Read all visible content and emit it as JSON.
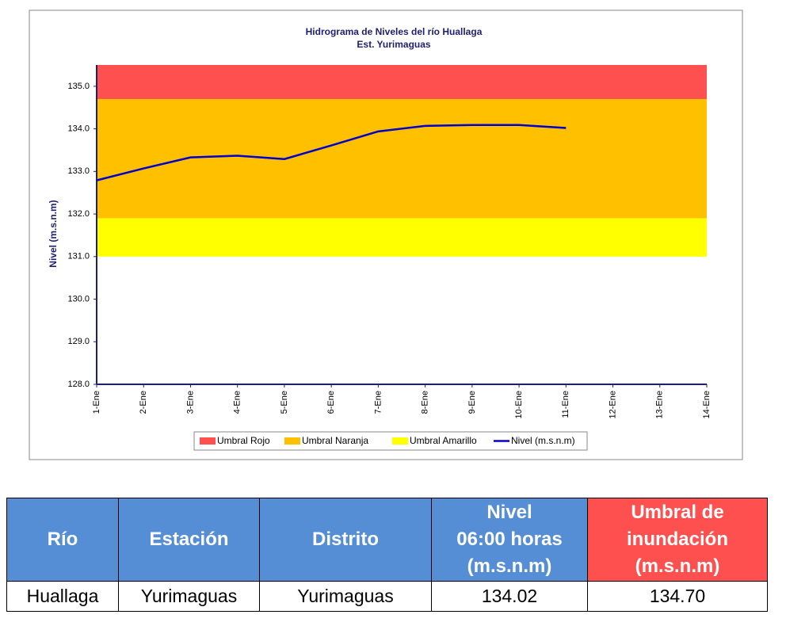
{
  "chart_data": {
    "type": "line",
    "title": "Hidrograma de Niveles del río Huallaga",
    "subtitle": "Est. Yurimaguas",
    "y_label": "Nivel (m.s.n.m)",
    "categories": [
      "1-Ene",
      "2-Ene",
      "3-Ene",
      "4-Ene",
      "5-Ene",
      "6-Ene",
      "7-Ene",
      "8-Ene",
      "9-Ene",
      "10-Ene",
      "11-Ene",
      "12-Ene",
      "13-Ene",
      "14-Ene"
    ],
    "thresholds": [
      {
        "name": "Umbral Rojo",
        "color": "#ff5050",
        "from": 134.7,
        "to": 135.5
      },
      {
        "name": "Umbral Naranja",
        "color": "#ffc000",
        "from": 131.9,
        "to": 134.7
      },
      {
        "name": "Umbral Amarillo",
        "color": "#ffff00",
        "from": 131.0,
        "to": 131.9
      }
    ],
    "series": [
      {
        "name": "Nivel (m.s.n.m)",
        "color": "#0000cc",
        "values": [
          132.79,
          133.07,
          133.33,
          133.37,
          133.29,
          133.61,
          133.94,
          134.07,
          134.09,
          134.09,
          134.02,
          null,
          null,
          null
        ]
      }
    ],
    "ylim": [
      128,
      135.5
    ],
    "yticks": [
      {
        "value": 128,
        "label": "128.0"
      },
      {
        "value": 129,
        "label": "129.0"
      },
      {
        "value": 130,
        "label": "130.0"
      },
      {
        "value": 131,
        "label": "131.0"
      },
      {
        "value": 132,
        "label": "132.0"
      },
      {
        "value": 133,
        "label": "133.0"
      },
      {
        "value": 134,
        "label": "134.0"
      },
      {
        "value": 135,
        "label": "135.0"
      }
    ],
    "legend": "bottom"
  },
  "table": {
    "header": [
      "Río",
      "Estación",
      "Distrito",
      "Nivel\n06:00 horas\n(m.s.n.m)",
      "Umbral de\ninundación\n(m.s.n.m)"
    ],
    "rows": [
      [
        "Huallaga",
        "Yurimaguas",
        "Yurimaguas",
        "134.02",
        "134.70"
      ]
    ]
  }
}
